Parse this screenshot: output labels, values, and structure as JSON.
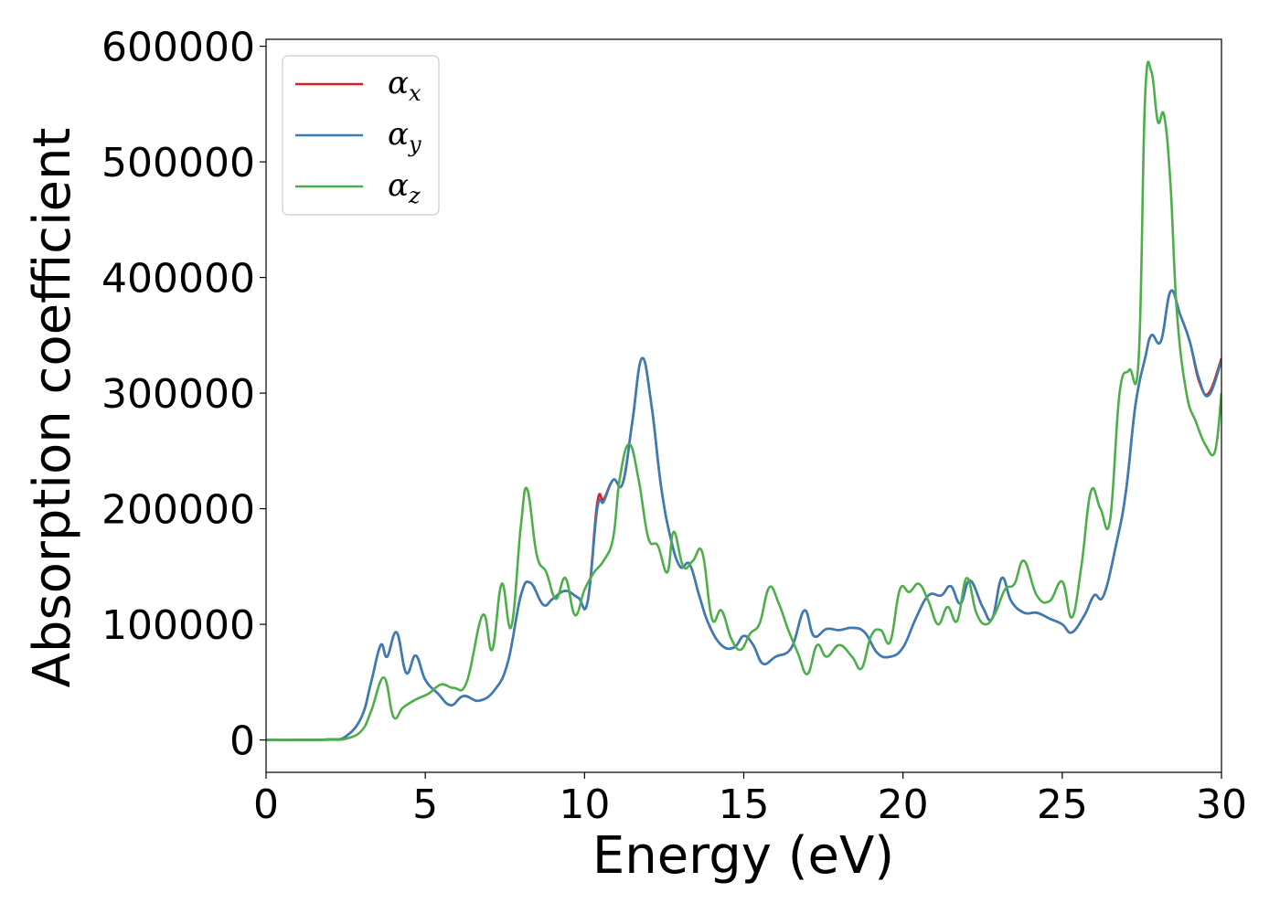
{
  "chart_data": {
    "type": "line",
    "xlabel": "Energy (eV)",
    "ylabel": "Absorption coefficient",
    "xlim": [
      0,
      30
    ],
    "ylim": [
      -28000,
      606000
    ],
    "xticks": [
      0,
      5,
      10,
      15,
      20,
      25,
      30
    ],
    "yticks": [
      0,
      100000,
      200000,
      300000,
      400000,
      500000,
      600000
    ],
    "grid": false,
    "legend": {
      "position": "top-left",
      "entries": [
        {
          "symbol": "α",
          "sub": "x",
          "color": "#e41a1c"
        },
        {
          "symbol": "α",
          "sub": "y",
          "color": "#377eb8"
        },
        {
          "symbol": "α",
          "sub": "z",
          "color": "#4daf4a"
        }
      ]
    },
    "series": [
      {
        "name": "αx",
        "color": "#e41a1c",
        "x": [
          0,
          1,
          2,
          2.5,
          3,
          3.3,
          3.6,
          3.8,
          4.1,
          4.4,
          4.7,
          5,
          5.4,
          5.8,
          6.2,
          6.7,
          7.2,
          7.6,
          8,
          8.3,
          8.7,
          9,
          9.4,
          9.8,
          10.1,
          10.4,
          10.6,
          10.9,
          11.2,
          11.5,
          11.8,
          12.1,
          12.4,
          12.7,
          13.0,
          13.3,
          13.6,
          13.9,
          14.3,
          14.7,
          15.0,
          15.3,
          15.6,
          16.0,
          16.5,
          16.9,
          17.2,
          17.6,
          18.0,
          18.4,
          18.8,
          19.2,
          19.6,
          20.0,
          20.4,
          20.8,
          21.2,
          21.5,
          21.8,
          22.1,
          22.5,
          22.8,
          23.1,
          23.4,
          23.8,
          24.2,
          24.6,
          25.0,
          25.3,
          25.7,
          26.0,
          26.3,
          26.7,
          27.0,
          27.3,
          27.6,
          27.8,
          28.1,
          28.4,
          28.7,
          29.0,
          29.3,
          29.6,
          30.0
        ],
        "y": [
          0,
          0,
          500,
          3000,
          20000,
          50000,
          82000,
          72000,
          93000,
          58000,
          73000,
          52000,
          40000,
          30000,
          38000,
          34000,
          44000,
          68000,
          125000,
          136000,
          117000,
          122000,
          129000,
          123000,
          120000,
          205000,
          208000,
          225000,
          222000,
          275000,
          330000,
          290000,
          220000,
          175000,
          150000,
          152000,
          125000,
          100000,
          82000,
          80000,
          90000,
          82000,
          66000,
          72000,
          80000,
          112000,
          90000,
          96000,
          95000,
          97000,
          93000,
          75000,
          72000,
          80000,
          105000,
          125000,
          125000,
          133000,
          118000,
          138000,
          115000,
          105000,
          140000,
          120000,
          110000,
          110000,
          105000,
          100000,
          93000,
          108000,
          125000,
          125000,
          170000,
          215000,
          290000,
          330000,
          350000,
          345000,
          388000,
          368000,
          345000,
          310000,
          300000,
          330000
        ]
      },
      {
        "name": "αy",
        "color": "#377eb8",
        "x": [
          0,
          1,
          2,
          2.5,
          3,
          3.3,
          3.6,
          3.8,
          4.1,
          4.4,
          4.7,
          5,
          5.4,
          5.8,
          6.2,
          6.7,
          7.2,
          7.6,
          8,
          8.3,
          8.7,
          9,
          9.4,
          9.8,
          10.1,
          10.4,
          10.6,
          10.9,
          11.2,
          11.5,
          11.8,
          12.1,
          12.4,
          12.7,
          13.0,
          13.3,
          13.6,
          13.9,
          14.3,
          14.7,
          15.0,
          15.3,
          15.6,
          16.0,
          16.5,
          16.9,
          17.2,
          17.6,
          18.0,
          18.4,
          18.8,
          19.2,
          19.6,
          20.0,
          20.4,
          20.8,
          21.2,
          21.5,
          21.8,
          22.1,
          22.5,
          22.8,
          23.1,
          23.4,
          23.8,
          24.2,
          24.6,
          25.0,
          25.3,
          25.7,
          26.0,
          26.3,
          26.7,
          27.0,
          27.3,
          27.6,
          27.8,
          28.1,
          28.4,
          28.7,
          29.0,
          29.3,
          29.6,
          30.0
        ],
        "y": [
          0,
          0,
          500,
          3000,
          20000,
          50000,
          82000,
          72000,
          93000,
          58000,
          73000,
          52000,
          40000,
          30000,
          38000,
          34000,
          44000,
          68000,
          125000,
          136000,
          117000,
          122000,
          129000,
          123000,
          120000,
          200000,
          206000,
          225000,
          222000,
          275000,
          330000,
          290000,
          220000,
          175000,
          150000,
          152000,
          125000,
          100000,
          82000,
          80000,
          90000,
          82000,
          66000,
          72000,
          80000,
          112000,
          90000,
          96000,
          95000,
          97000,
          93000,
          75000,
          72000,
          80000,
          105000,
          125000,
          125000,
          133000,
          118000,
          138000,
          115000,
          105000,
          140000,
          120000,
          110000,
          110000,
          105000,
          100000,
          93000,
          108000,
          125000,
          125000,
          170000,
          215000,
          290000,
          330000,
          350000,
          345000,
          388000,
          368000,
          345000,
          312000,
          298000,
          328000
        ]
      },
      {
        "name": "αz",
        "color": "#4daf4a",
        "x": [
          0,
          1,
          2,
          2.5,
          3,
          3.3,
          3.7,
          4.0,
          4.3,
          4.7,
          5.1,
          5.5,
          5.9,
          6.3,
          6.8,
          7.1,
          7.4,
          7.7,
          8.0,
          8.2,
          8.5,
          8.8,
          9.1,
          9.4,
          9.7,
          10.0,
          10.3,
          10.6,
          10.9,
          11.1,
          11.4,
          11.7,
          12.0,
          12.3,
          12.6,
          12.8,
          13.1,
          13.4,
          13.7,
          14.0,
          14.3,
          14.6,
          14.9,
          15.2,
          15.5,
          15.8,
          16.1,
          16.4,
          16.7,
          17.0,
          17.3,
          17.6,
          18.0,
          18.4,
          18.7,
          19.0,
          19.3,
          19.6,
          19.9,
          20.2,
          20.5,
          20.8,
          21.1,
          21.4,
          21.7,
          22.0,
          22.3,
          22.6,
          22.9,
          23.2,
          23.5,
          23.8,
          24.2,
          24.6,
          25.0,
          25.3,
          25.6,
          25.9,
          26.2,
          26.5,
          26.8,
          27.1,
          27.4,
          27.6,
          27.8,
          28.0,
          28.2,
          28.4,
          28.6,
          28.9,
          29.2,
          29.5,
          29.8,
          30.0
        ],
        "y": [
          0,
          0,
          200,
          1000,
          8000,
          25000,
          54000,
          20000,
          28000,
          35000,
          40000,
          48000,
          45000,
          50000,
          108000,
          78000,
          135000,
          98000,
          185000,
          217000,
          160000,
          145000,
          122000,
          140000,
          108000,
          130000,
          145000,
          155000,
          175000,
          225000,
          256000,
          225000,
          175000,
          168000,
          145000,
          180000,
          150000,
          155000,
          162000,
          105000,
          112000,
          88000,
          78000,
          92000,
          101000,
          132000,
          118000,
          95000,
          75000,
          57000,
          82000,
          72000,
          82000,
          72000,
          62000,
          90000,
          95000,
          85000,
          130000,
          128000,
          135000,
          120000,
          100000,
          115000,
          103000,
          140000,
          110000,
          100000,
          110000,
          130000,
          135000,
          155000,
          125000,
          120000,
          137000,
          106000,
          150000,
          215000,
          200000,
          190000,
          300000,
          320000,
          330000,
          555000,
          578000,
          535000,
          540000,
          480000,
          370000,
          300000,
          275000,
          255000,
          250000,
          300000
        ]
      }
    ]
  }
}
